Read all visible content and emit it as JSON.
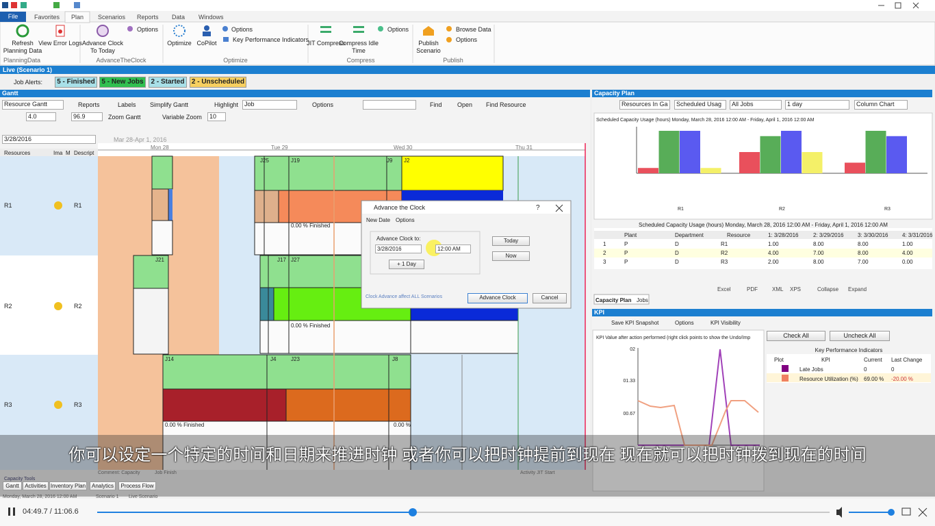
{
  "ribbon": {
    "tabs": [
      "File",
      "Favorites",
      "Plan",
      "Scenarios",
      "Reports",
      "Data",
      "Windows"
    ],
    "groups": [
      {
        "label": "PlanningData",
        "items": [
          "Refresh Planning Data",
          "View Error Logs"
        ]
      },
      {
        "label": "AdvanceTheClock",
        "items": [
          "Advance Clock To Today",
          "Options"
        ]
      },
      {
        "label": "Optimize",
        "items": [
          "Optimize",
          "CoPilot",
          "Options",
          "Key Performance Indicators"
        ]
      },
      {
        "label": "Compress",
        "items": [
          "JIT Compress",
          "Compress Idle Time",
          "Options"
        ]
      },
      {
        "label": "Publish",
        "items": [
          "Publish Scenario",
          "Browse Data",
          "Options"
        ]
      }
    ]
  },
  "scenario_bar": "Live (Scenario 1)",
  "job_alerts": {
    "label": "Job Alerts:",
    "buttons": [
      "5 - Finished",
      "5 - New Jobs",
      "2 - Started",
      "2 - Unscheduled"
    ]
  },
  "gantt": {
    "title": "Gantt",
    "toolbar": [
      "Resource Gantt",
      "Reports",
      "Labels",
      "Simplify Gantt",
      "Highlight",
      "Job",
      "Options",
      "Find",
      "Open",
      "Find Resource"
    ],
    "zoom": {
      "value1": "4.0",
      "value2": "96.9",
      "zoom_label": "Zoom Gantt",
      "variable_label": "Variable Zoom",
      "variable_value": "10"
    },
    "date": "3/28/2016",
    "range": "Mar 28-Apr 1, 2016",
    "days": [
      "Mon 28",
      "Tue 29",
      "Wed 30",
      "Thu 31"
    ],
    "columns": [
      "Resources",
      "Ima",
      "M",
      "Descript"
    ],
    "resources": [
      {
        "name": "R1",
        "desc": "R1"
      },
      {
        "name": "R2",
        "desc": "R2"
      },
      {
        "name": "R3",
        "desc": "R3"
      }
    ],
    "bar_labels": [
      "J25",
      "J19",
      "J9",
      "J2",
      "0.00 % Finished",
      "J21",
      "J17",
      "J27",
      "0.00 % Finished",
      "J14",
      "J4",
      "J23",
      "J8",
      "0.00 % Finished",
      "0.00 %"
    ],
    "footer": [
      "Comment: Capacity",
      "Job Finish",
      "Activity JIT Start"
    ],
    "capacity_tools": "Capacity Tools",
    "tabs": [
      "Gantt",
      "Activities",
      "Inventory Plan",
      "Analytics",
      "Process Flow"
    ]
  },
  "status": [
    "Monday, March 28, 2016 12:00 AM",
    "Scenario 1",
    "Live Scenario"
  ],
  "capacity_plan": {
    "title": "Capacity Plan",
    "toolbar": [
      "Resources In Ga",
      "Scheduled Usag",
      "All Jobs",
      "1 day",
      "Column Chart"
    ],
    "chart_title": "Scheduled Capacity Usage (hours) Monday, March 28, 2016 12:00 AM - Friday, April 1, 2016 12:00 AM",
    "table_title": "Scheduled Capacity Usage (hours) Monday, March 28, 2016 12:00 AM - Friday, April 1, 2016 12:00 AM",
    "columns": [
      "Plant",
      "Department",
      "Resource",
      "1: 3/28/2016",
      "2: 3/29/2016",
      "3: 3/30/2016",
      "4: 3/31/2016"
    ],
    "series_colors": [
      "#e9505c",
      "#58ad58",
      "#5a5af0",
      "#f4f068"
    ],
    "rows": [
      {
        "index": 1,
        "plant": "P",
        "department": "D",
        "resource": "R1",
        "values": [
          1,
          8,
          8,
          1
        ],
        "value_labels": [
          "1.00",
          "8.00",
          "8.00",
          "1.00"
        ]
      },
      {
        "index": 2,
        "plant": "P",
        "department": "D",
        "resource": "R2",
        "values": [
          4,
          7,
          8,
          4
        ],
        "value_labels": [
          "4.00",
          "7.00",
          "8.00",
          "4.00"
        ]
      },
      {
        "index": 3,
        "plant": "P",
        "department": "D",
        "resource": "R3",
        "values": [
          2,
          8,
          7,
          0
        ],
        "value_labels": [
          "2.00",
          "8.00",
          "7.00",
          "0.00"
        ]
      }
    ],
    "export": [
      "Excel",
      "PDF",
      "XML",
      "XPS",
      "Collapse",
      "Expand"
    ],
    "tabs": [
      "Capacity Plan",
      "Jobs"
    ]
  },
  "kpi": {
    "title": "KPI",
    "toolbar": [
      "Save KPI Snapshot",
      "Options",
      "KPI Visibility"
    ],
    "chart_title": "KPI Value after action performed (right click points to show the Undo/Imp",
    "ytick_labels": [
      "02",
      "01.33",
      "00.67"
    ],
    "buttons": [
      "Check All",
      "Uncheck All"
    ],
    "table_title": "Key Performance Indicators",
    "columns": [
      "Plot",
      "KPI",
      "Current",
      "Last Change"
    ],
    "rows": [
      [
        "Late Jobs",
        "0",
        "0"
      ],
      [
        "Resource Utilization (%)",
        "69.00 %",
        "-20.00 %"
      ]
    ]
  },
  "dialog": {
    "title": "Advance the Clock",
    "help": "?",
    "tabs": [
      "New Date",
      "Options"
    ],
    "label": "Advance Clock to:",
    "date": "3/28/2016",
    "time": "12:00 AM",
    "plus_day": "+ 1 Day",
    "today": "Today",
    "now": "Now",
    "note": "Clock Advance affect ALL Scenarios",
    "ok": "Advance Clock",
    "cancel": "Cancel"
  },
  "subtitle": "你可以设定一个特定的时间和日期来推进时钟 或者你可以把时钟提前到现在 现在就可以把时钟拨到现在的时间",
  "player": {
    "time": "04:49.7 / 11:06.6"
  }
}
